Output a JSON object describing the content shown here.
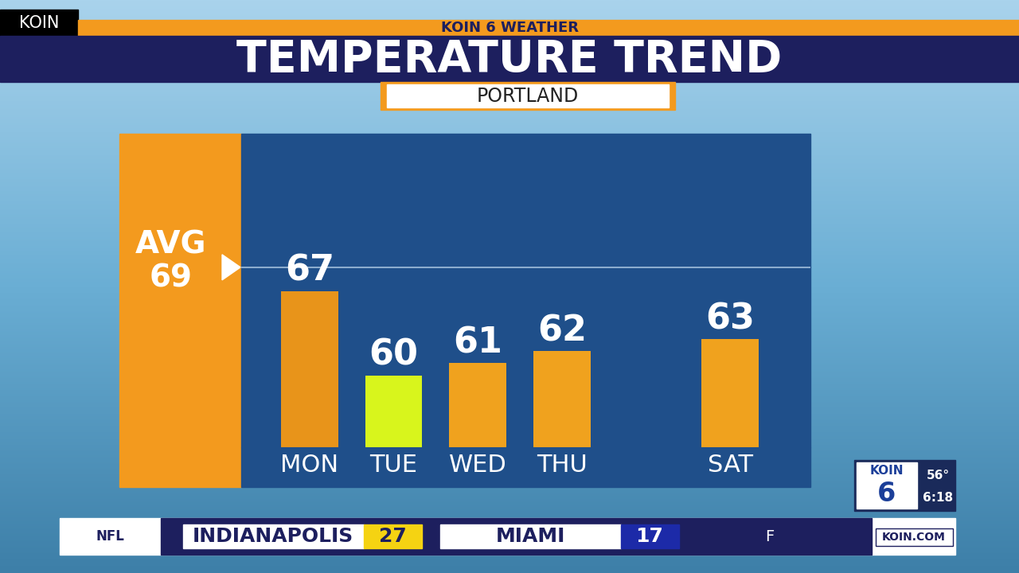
{
  "header": {
    "logo": "KOIN",
    "station": "KOIN 6 WEATHER",
    "title": "TEMPERATURE TREND",
    "location": "PORTLAND"
  },
  "chart_data": {
    "type": "bar",
    "categories": [
      "MON",
      "TUE",
      "WED",
      "THU",
      null,
      "SAT"
    ],
    "values": [
      67,
      60,
      61,
      62,
      null,
      63
    ],
    "colors": [
      "#e8941a",
      "#d8f51c",
      "#f0a21e",
      "#f0a21e",
      null,
      "#f0a21e"
    ],
    "avg_label": "AVG",
    "avg": 69,
    "ylim": [
      54,
      80
    ],
    "yticks": [],
    "data_labels": true,
    "tick_labels": "x"
  },
  "bug": {
    "logo": "KOIN",
    "channel": "6",
    "temperature": "56°",
    "time": "6:18"
  },
  "ticker": {
    "league": "NFL",
    "teams": [
      {
        "name": "INDIANAPOLIS",
        "score": 27
      },
      {
        "name": "MIAMI",
        "score": 17
      }
    ],
    "status": "F",
    "site": "KOIN.COM"
  }
}
